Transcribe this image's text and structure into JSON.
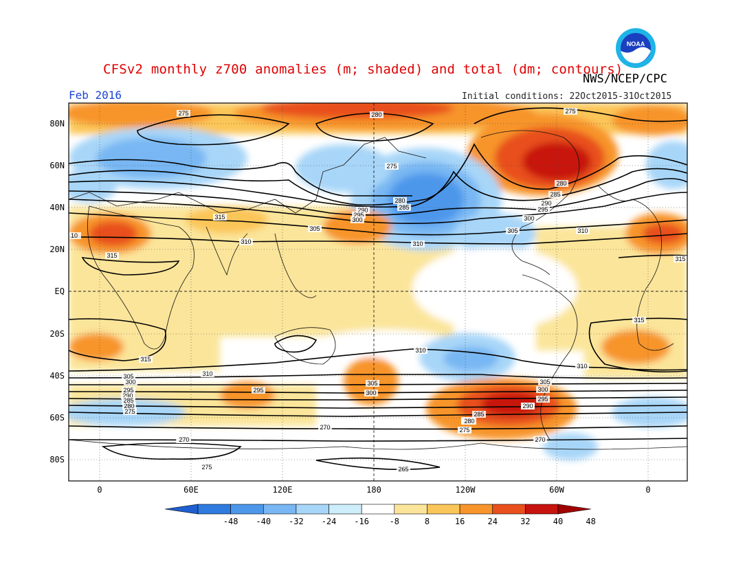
{
  "title": "CFSv2 monthly z700 anomalies (m; shaded) and total (dm; contours)",
  "month": "Feb 2016",
  "initial_conditions": "Initial conditions: 22Oct2015-31Oct2015",
  "agency": "NWS/NCEP/CPC",
  "logo_text": "NOAA",
  "lat_labels": [
    "80N",
    "60N",
    "40N",
    "20N",
    "EQ",
    "20S",
    "40S",
    "60S",
    "80S"
  ],
  "lon_labels": [
    "0",
    "60E",
    "120E",
    "180",
    "120W",
    "60W",
    "0"
  ],
  "colorbar": {
    "labels": [
      "-48",
      "-40",
      "-32",
      "-24",
      "-16",
      "-8",
      "8",
      "16",
      "24",
      "32",
      "40",
      "48"
    ],
    "colors": [
      "#1f5fd0",
      "#2f7be0",
      "#4d97eb",
      "#78b7f3",
      "#a8d6f8",
      "#cdeefa",
      "#ffffff",
      "#fbe59a",
      "#fbc659",
      "#f7942c",
      "#e8501e",
      "#c8140f",
      "#a00000"
    ]
  },
  "contour_labels": [
    "275",
    "280",
    "275",
    "280",
    "285",
    "290",
    "295",
    "300",
    "305",
    "310",
    "315",
    "280",
    "275",
    "285",
    "290",
    "295",
    "300",
    "305",
    "310",
    "310",
    "315",
    "315",
    "310",
    "310",
    "305",
    "300",
    "295",
    "290",
    "285",
    "280",
    "275",
    "270",
    "305",
    "300",
    "295",
    "290",
    "285",
    "280",
    "275",
    "270",
    "265",
    "270",
    "275",
    "270",
    "305",
    "300",
    "295",
    "290",
    "285",
    "280",
    "275",
    "310",
    "315",
    "10",
    "315"
  ]
}
